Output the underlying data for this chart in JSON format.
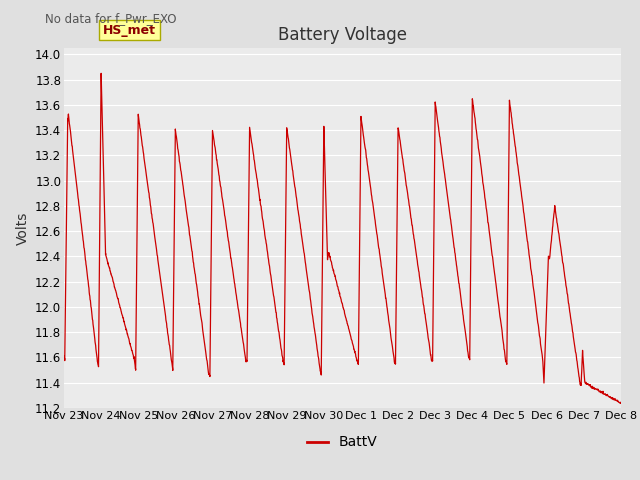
{
  "title": "Battery Voltage",
  "note": "No data for f_Pwr_EXO",
  "ylabel": "Volts",
  "legend_label": "BattV",
  "hs_met_label": "HS_met",
  "ylim": [
    11.2,
    14.05
  ],
  "yticks": [
    11.2,
    11.4,
    11.6,
    11.8,
    12.0,
    12.2,
    12.4,
    12.6,
    12.8,
    13.0,
    13.2,
    13.4,
    13.6,
    13.8,
    14.0
  ],
  "line_color": "#CC0000",
  "bg_color": "#E0E0E0",
  "plot_bg_color": "#EBEBEB",
  "xtick_labels": [
    "Nov 23",
    "Nov 24",
    "Nov 25",
    "Nov 26",
    "Nov 27",
    "Nov 28",
    "Nov 29",
    "Nov 30",
    "Dec 1",
    "Dec 2",
    "Dec 3",
    "Dec 4",
    "Dec 5",
    "Dec 6",
    "Dec 7",
    "Dec 8"
  ],
  "xtick_positions": [
    0,
    1,
    2,
    3,
    4,
    5,
    6,
    7,
    8,
    9,
    10,
    11,
    12,
    13,
    14,
    15
  ]
}
